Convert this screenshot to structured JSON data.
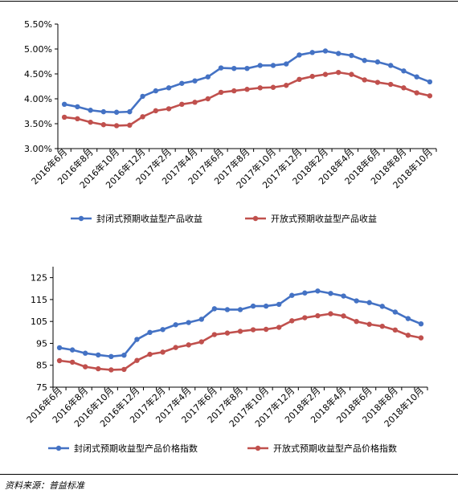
{
  "colors": {
    "blue": "#4472C4",
    "red": "#C0504D",
    "axis": "#000000"
  },
  "chart_data": [
    {
      "type": "line",
      "categories": [
        "2016年6月",
        "2016年7月",
        "2016年8月",
        "2016年9月",
        "2016年10月",
        "2016年11月",
        "2016年12月",
        "2017年1月",
        "2017年2月",
        "2017年3月",
        "2017年4月",
        "2017年5月",
        "2017年6月",
        "2017年7月",
        "2017年8月",
        "2017年9月",
        "2017年10月",
        "2017年11月",
        "2017年12月",
        "2018年1月",
        "2018年2月",
        "2018年3月",
        "2018年4月",
        "2018年5月",
        "2018年6月",
        "2018年7月",
        "2018年8月",
        "2018年9月",
        "2018年10月"
      ],
      "x_tick_labels": [
        "2016年6月",
        "2016年8月",
        "2016年10月",
        "2016年12月",
        "2017年2月",
        "2017年4月",
        "2017年6月",
        "2017年8月",
        "2017年10月",
        "2017年12月",
        "2018年2月",
        "2018年4月",
        "2018年6月",
        "2018年8月",
        "2018年10月"
      ],
      "y_tick_labels": [
        "3.00%",
        "3.50%",
        "4.00%",
        "4.50%",
        "5.00%",
        "5.50%"
      ],
      "ylim": [
        3.0,
        5.5
      ],
      "yunit": "%",
      "grid": false,
      "legend_placement": "bottom",
      "series": [
        {
          "name": "封闭式预期收益型产品收益",
          "color": "#4472C4",
          "values": [
            3.89,
            3.84,
            3.77,
            3.74,
            3.73,
            3.74,
            4.05,
            4.16,
            4.22,
            4.31,
            4.36,
            4.44,
            4.62,
            4.61,
            4.61,
            4.67,
            4.67,
            4.7,
            4.88,
            4.93,
            4.96,
            4.91,
            4.87,
            4.77,
            4.74,
            4.67,
            4.56,
            4.44,
            4.34
          ]
        },
        {
          "name": "开放式预期收益型产品收益",
          "color": "#C0504D",
          "values": [
            3.63,
            3.6,
            3.53,
            3.48,
            3.46,
            3.47,
            3.64,
            3.76,
            3.8,
            3.89,
            3.93,
            4.0,
            4.13,
            4.16,
            4.19,
            4.22,
            4.23,
            4.27,
            4.39,
            4.45,
            4.49,
            4.53,
            4.49,
            4.38,
            4.33,
            4.29,
            4.22,
            4.12,
            4.06
          ]
        }
      ]
    },
    {
      "type": "line",
      "categories": [
        "2016年6月",
        "2016年7月",
        "2016年8月",
        "2016年9月",
        "2016年10月",
        "2016年11月",
        "2016年12月",
        "2017年1月",
        "2017年2月",
        "2017年3月",
        "2017年4月",
        "2017年5月",
        "2017年6月",
        "2017年7月",
        "2017年8月",
        "2017年9月",
        "2017年10月",
        "2017年11月",
        "2017年12月",
        "2018年1月",
        "2018年2月",
        "2018年3月",
        "2018年4月",
        "2018年5月",
        "2018年6月",
        "2018年7月",
        "2018年8月",
        "2018年9月",
        "2018年10月"
      ],
      "x_tick_labels": [
        "2016年6月",
        "2016年8月",
        "2016年10月",
        "2016年12月",
        "2017年2月",
        "2017年4月",
        "2017年6月",
        "2017年8月",
        "2017年10月",
        "2017年12月",
        "2018年2月",
        "2018年4月",
        "2018年6月",
        "2018年8月",
        "2018年10月"
      ],
      "y_tick_labels": [
        "75",
        "85",
        "95",
        "105",
        "115",
        "125"
      ],
      "ylim": [
        75,
        130
      ],
      "grid": false,
      "legend_placement": "bottom",
      "series": [
        {
          "name": "封闭式预期收益型产品价格指数",
          "color": "#4472C4",
          "values": [
            93.0,
            92.0,
            90.5,
            89.7,
            89.0,
            89.6,
            96.8,
            100.0,
            101.3,
            103.5,
            104.5,
            106.0,
            110.8,
            110.4,
            110.4,
            112.0,
            112.0,
            112.8,
            116.9,
            118.0,
            118.9,
            117.8,
            116.6,
            114.4,
            113.6,
            111.9,
            109.3,
            106.3,
            103.9
          ]
        },
        {
          "name": "开放式预期收益型产品价格指数",
          "color": "#C0504D",
          "values": [
            87.1,
            86.4,
            84.3,
            83.4,
            82.9,
            83.1,
            87.2,
            90.0,
            91.0,
            93.1,
            94.3,
            95.7,
            99.0,
            99.7,
            100.5,
            101.2,
            101.4,
            102.3,
            105.3,
            106.7,
            107.6,
            108.5,
            107.5,
            105.0,
            103.7,
            102.8,
            101.1,
            98.7,
            97.5
          ]
        }
      ]
    }
  ],
  "footer": {
    "source": "资料来源：普益标准"
  }
}
